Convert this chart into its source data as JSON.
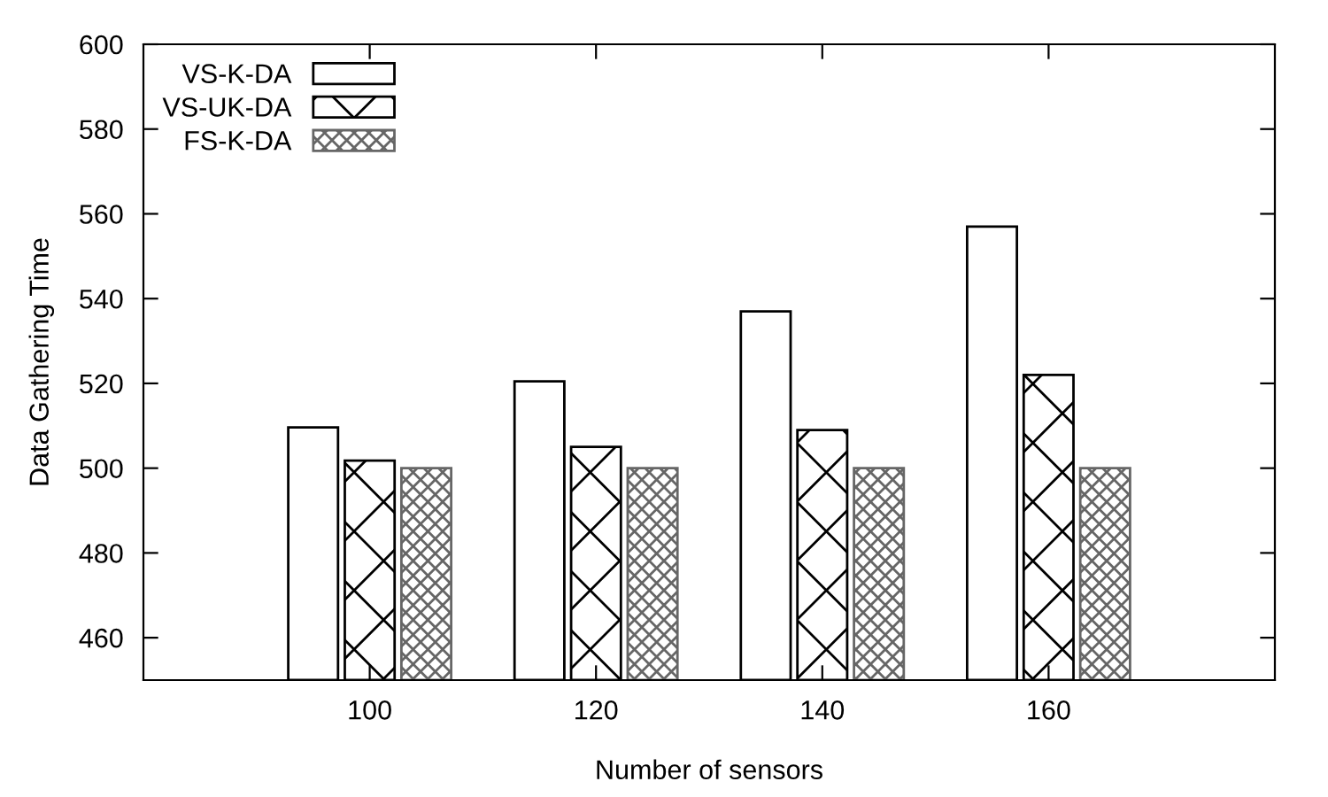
{
  "chart_data": {
    "type": "bar",
    "xlabel": "Number of sensors",
    "ylabel": "Data Gathering Time",
    "categories": [
      "100",
      "120",
      "140",
      "160"
    ],
    "series": [
      {
        "name": "VS-K-DA",
        "color": "#ffffff",
        "values": [
          509.6,
          520.5,
          537,
          557
        ]
      },
      {
        "name": "VS-UK-DA",
        "color": "#000000",
        "values": [
          501.8,
          505,
          509,
          522
        ]
      },
      {
        "name": "FS-K-DA",
        "color": "#666666",
        "values": [
          500,
          500,
          500,
          500
        ]
      }
    ],
    "ylim": [
      450,
      600
    ],
    "yticks": [
      460,
      480,
      500,
      520,
      540,
      560,
      580,
      600
    ],
    "grid": false,
    "legend": "top left"
  }
}
